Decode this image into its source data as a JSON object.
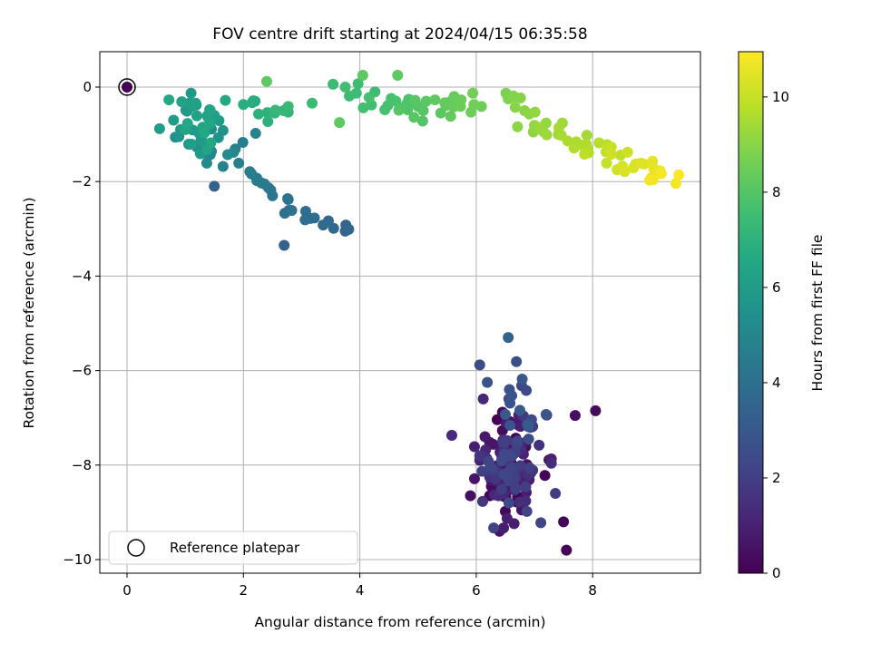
{
  "chart_data": {
    "type": "scatter",
    "title": "FOV centre drift starting at 2024/04/15 06:35:58",
    "xlabel": "Angular distance from reference (arcmin)",
    "ylabel": "Rotation from reference (arcmin)",
    "xlim": [
      -0.45,
      9.8
    ],
    "ylim": [
      -10.3,
      0.75
    ],
    "xticks": [
      0,
      2,
      4,
      6,
      8
    ],
    "yticks": [
      0,
      -2,
      -4,
      -6,
      -8,
      -10
    ],
    "grid": true,
    "legend": {
      "placement": "lower-left",
      "label": "Reference platepar"
    },
    "reference_point": {
      "x": 0,
      "y": 0
    },
    "colorbar": {
      "label": "Hours from first FF file",
      "range": [
        0,
        10.95
      ],
      "ticks": [
        0,
        2,
        4,
        6,
        8,
        10
      ],
      "colormap": "viridis"
    },
    "points": []
  }
}
